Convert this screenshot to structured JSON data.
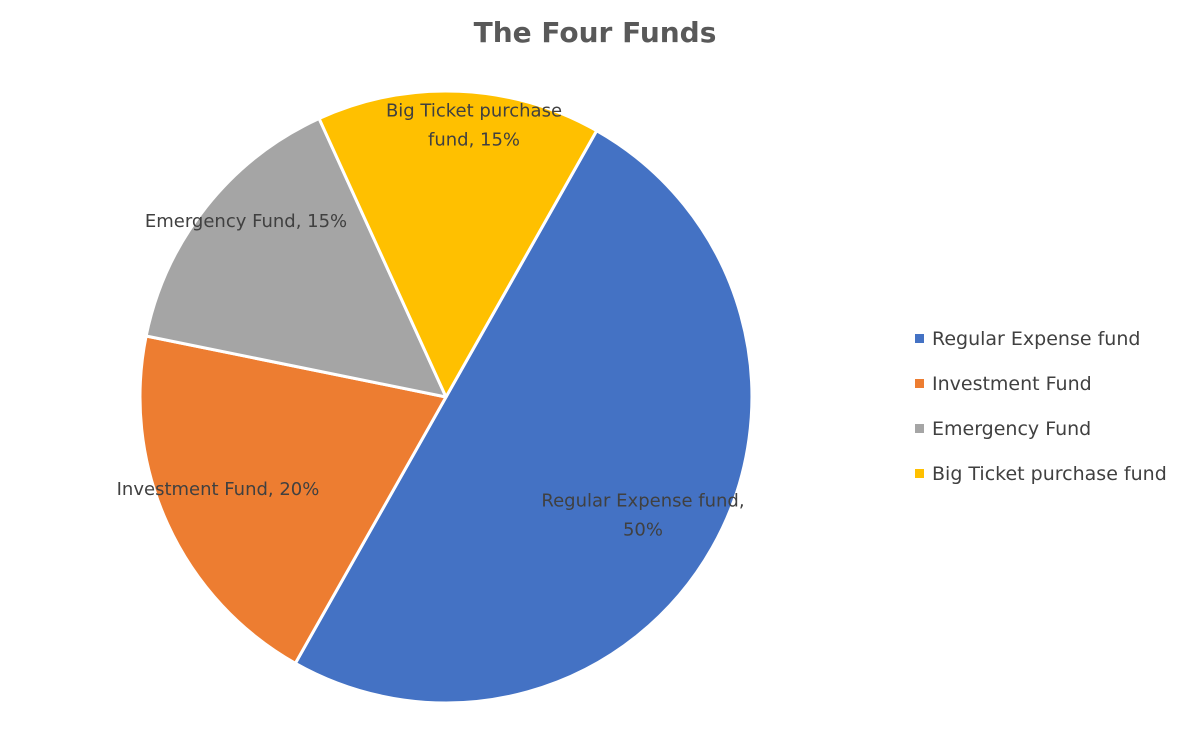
{
  "chart_data": {
    "type": "pie",
    "title": "The Four Funds",
    "categories": [
      "Regular Expense fund",
      "Investment Fund",
      "Emergency Fund",
      "Big Ticket purchase fund"
    ],
    "values": [
      50,
      20,
      15,
      15
    ],
    "colors": [
      "#4472C4",
      "#ED7D31",
      "#A5A5A5",
      "#FFC000"
    ],
    "data_labels": [
      [
        "Regular Expense fund,",
        "50%"
      ],
      [
        "Investment Fund, 20%"
      ],
      [
        "Emergency Fund, 15%"
      ],
      [
        "Big Ticket purchase",
        "fund, 15%"
      ]
    ],
    "legend": {
      "position": "right",
      "entries": [
        "Regular Expense fund",
        "Investment Fund",
        "Emergency Fund",
        "Big Ticket purchase fund"
      ]
    }
  }
}
